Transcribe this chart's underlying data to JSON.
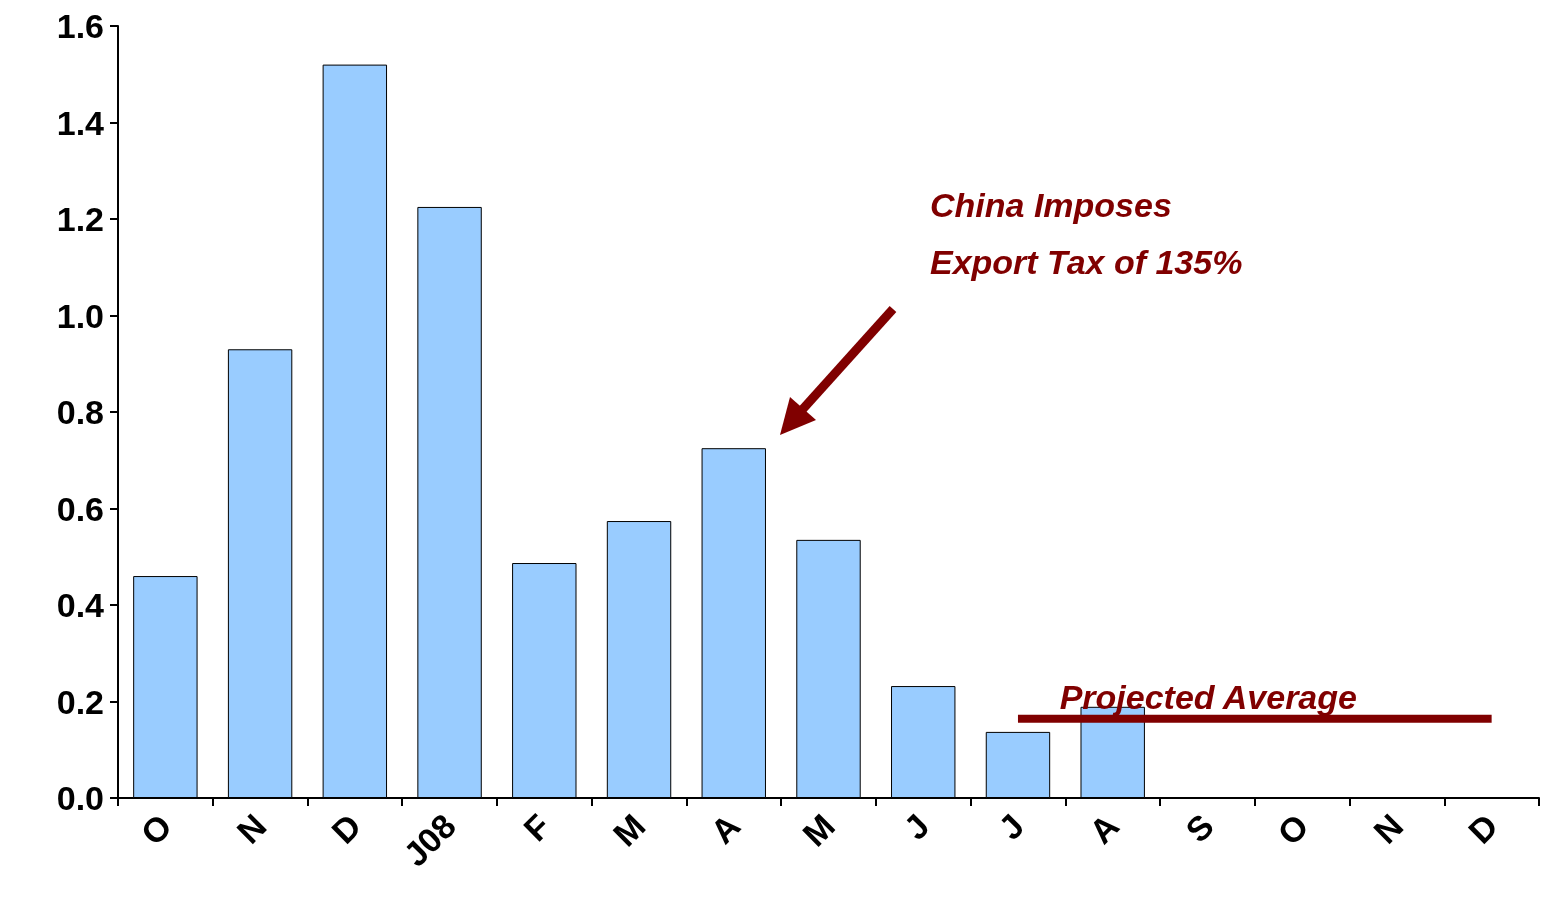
{
  "chart_data": {
    "type": "bar",
    "categories": [
      "O",
      "N",
      "D",
      "J08",
      "F",
      "M",
      "A",
      "M",
      "J",
      "J",
      "A",
      "S",
      "O",
      "N",
      "D"
    ],
    "series": [
      {
        "color": "#99ccff",
        "values": [
          0.46,
          0.93,
          1.52,
          1.225,
          0.487,
          0.574,
          0.725,
          0.535,
          0.232,
          0.137,
          0.189,
          null,
          null,
          null,
          null
        ]
      },
      {
        "type": "line",
        "name": "Projected Average",
        "color": "#800000",
        "values": [
          null,
          null,
          null,
          null,
          null,
          null,
          null,
          null,
          null,
          0.164,
          0.164,
          0.164,
          0.164,
          0.164,
          0.164
        ]
      }
    ],
    "ylim": [
      0,
      1.6
    ],
    "yticks": [
      {
        "value": 0,
        "label": "0.0"
      },
      {
        "value": 0.2,
        "label": "0.2"
      },
      {
        "value": 0.4,
        "label": "0.4"
      },
      {
        "value": 0.6,
        "label": "0.6"
      },
      {
        "value": 0.8,
        "label": "0.8"
      },
      {
        "value": 1,
        "label": "1.0"
      },
      {
        "value": 1.2,
        "label": "1.2"
      },
      {
        "value": 1.4,
        "label": "1.4"
      },
      {
        "value": 1.6,
        "label": "1.6"
      }
    ],
    "annotations": [
      "China Imposes\nExport Tax of 135%"
    ],
    "grid": false,
    "legend": false,
    "marker": "none",
    "line_style": "solid"
  }
}
